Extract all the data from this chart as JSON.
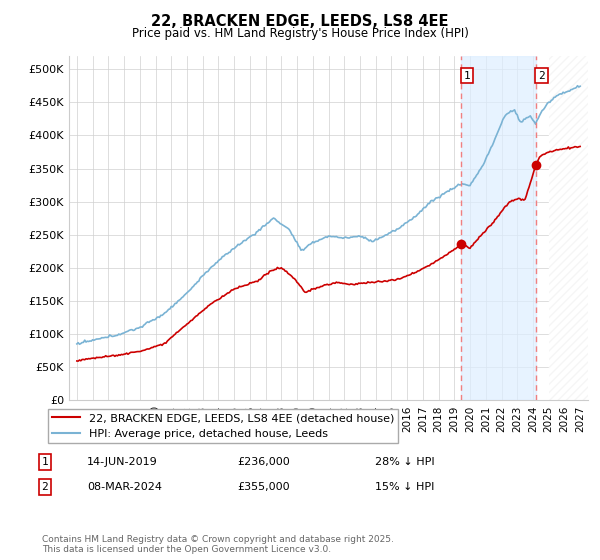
{
  "title": "22, BRACKEN EDGE, LEEDS, LS8 4EE",
  "subtitle": "Price paid vs. HM Land Registry's House Price Index (HPI)",
  "hpi_label": "HPI: Average price, detached house, Leeds",
  "price_label": "22, BRACKEN EDGE, LEEDS, LS8 4EE (detached house)",
  "hpi_color": "#7ab3d4",
  "price_color": "#cc0000",
  "vline_color": "#f08080",
  "shade_color": "#ddeeff",
  "annotation1_date": "14-JUN-2019",
  "annotation1_price": "£236,000",
  "annotation1_hpi": "28% ↓ HPI",
  "annotation2_date": "08-MAR-2024",
  "annotation2_price": "£355,000",
  "annotation2_hpi": "15% ↓ HPI",
  "vline1_x": 2019.45,
  "vline2_x": 2024.18,
  "sale1_price": 236000,
  "sale2_price": 355000,
  "copyright": "Contains HM Land Registry data © Crown copyright and database right 2025.\nThis data is licensed under the Open Government Licence v3.0.",
  "xlim": [
    1994.5,
    2027.5
  ],
  "ylim": [
    0,
    520000
  ],
  "yticks": [
    0,
    50000,
    100000,
    150000,
    200000,
    250000,
    300000,
    350000,
    400000,
    450000,
    500000
  ],
  "xticks": [
    1995,
    1996,
    1997,
    1998,
    1999,
    2000,
    2001,
    2002,
    2003,
    2004,
    2005,
    2006,
    2007,
    2008,
    2009,
    2010,
    2011,
    2012,
    2013,
    2014,
    2015,
    2016,
    2017,
    2018,
    2019,
    2020,
    2021,
    2022,
    2023,
    2024,
    2025,
    2026,
    2027
  ]
}
